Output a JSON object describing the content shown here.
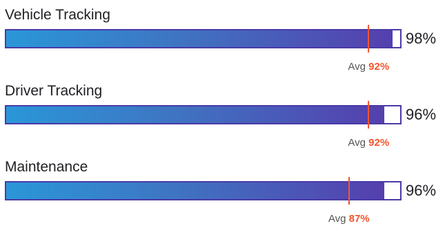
{
  "chart_data": {
    "type": "bar",
    "orientation": "horizontal",
    "xlim": [
      0,
      100
    ],
    "unit": "%",
    "avg_prefix": "Avg",
    "categories": [
      "Vehicle Tracking",
      "Driver Tracking",
      "Maintenance"
    ],
    "values": [
      98,
      96,
      96
    ],
    "averages": [
      92,
      92,
      87
    ],
    "value_labels": [
      "98%",
      "96%",
      "96%"
    ],
    "average_labels": [
      "92%",
      "92%",
      "87%"
    ]
  },
  "colors": {
    "bar_gradient_start": "#2a97d8",
    "bar_gradient_end": "#553fae",
    "bar_border": "#4a3aa6",
    "average_marker": "#f2562f"
  }
}
